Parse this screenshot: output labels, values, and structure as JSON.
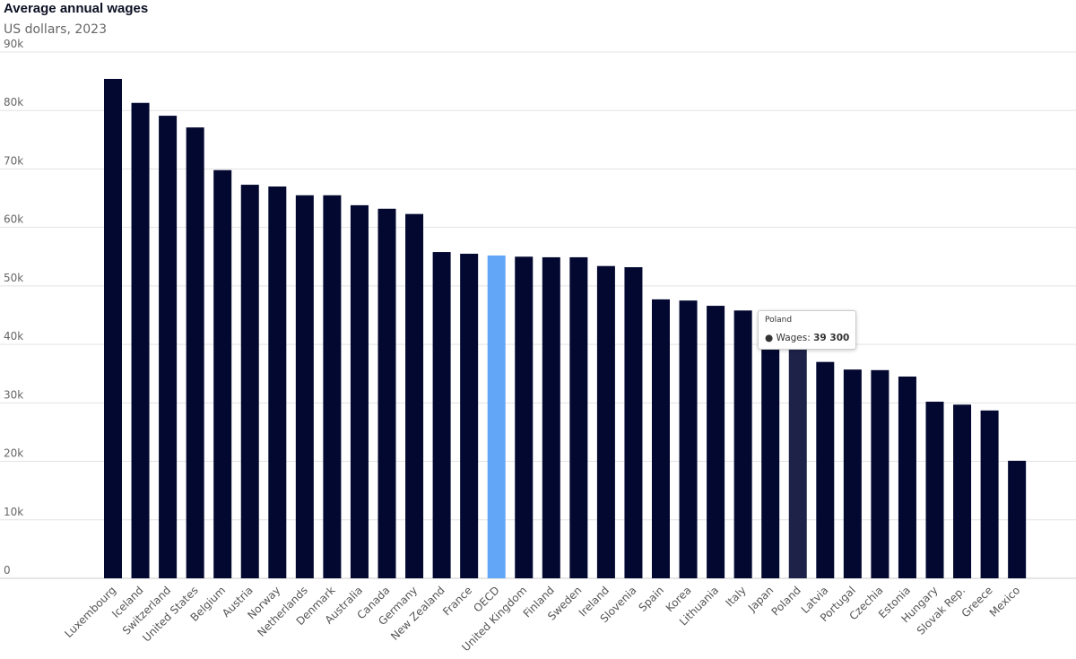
{
  "chart_data": {
    "type": "bar",
    "title": "Average annual wages",
    "subtitle": "US dollars, 2023",
    "ylim": [
      0,
      90000
    ],
    "yticks": [
      0,
      10000,
      20000,
      30000,
      40000,
      50000,
      60000,
      70000,
      80000,
      90000
    ],
    "ytick_labels": [
      "0",
      "10k",
      "20k",
      "30k",
      "40k",
      "50k",
      "60k",
      "70k",
      "80k",
      "90k"
    ],
    "grid": true,
    "categories": [
      "Luxembourg",
      "Iceland",
      "Switzerland",
      "United States",
      "Belgium",
      "Austria",
      "Norway",
      "Netherlands",
      "Denmark",
      "Australia",
      "Canada",
      "Germany",
      "New Zealand",
      "France",
      "OECD",
      "United Kingdom",
      "Finland",
      "Sweden",
      "Ireland",
      "Slovenia",
      "Spain",
      "Korea",
      "Lithuania",
      "Italy",
      "Japan",
      "Poland",
      "Latvia",
      "Portugal",
      "Czechia",
      "Estonia",
      "Hungary",
      "Slovak Rep.",
      "Greece",
      "Mexico"
    ],
    "values": [
      85400,
      81300,
      79100,
      77100,
      69800,
      67300,
      67000,
      65500,
      65500,
      63800,
      63200,
      62300,
      55800,
      55500,
      55200,
      55000,
      54900,
      54900,
      53400,
      53200,
      47700,
      47500,
      46600,
      45800,
      41500,
      39300,
      37000,
      35700,
      35600,
      34500,
      30200,
      29700,
      28700,
      20100
    ],
    "colors": {
      "default": "#030830",
      "highlight": "#62a6f7",
      "hover": "#1e2248"
    },
    "highlighted": "OECD",
    "tooltip": {
      "category": "Poland",
      "series": "Wages",
      "label": "Wages: ",
      "value": "39 300"
    }
  }
}
